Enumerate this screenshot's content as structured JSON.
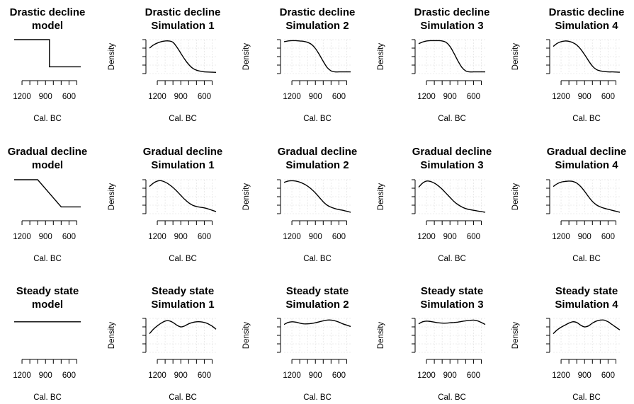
{
  "figure": {
    "x_axis_label": "Cal. BC",
    "y_axis_label": "Density",
    "x_tick_labels": [
      "1200",
      "900",
      "600"
    ],
    "line_color": "#000000",
    "grid_color": "#e6e6e6"
  },
  "chart_data": [
    {
      "type": "line",
      "title_lines": [
        "Drastic decline",
        "model"
      ],
      "kind": "model",
      "x": [
        1300,
        850,
        850,
        450
      ],
      "y": [
        1.0,
        1.0,
        0.2,
        0.2
      ],
      "xlabel": "Cal. BC",
      "ylabel": "",
      "xlim": [
        1300,
        450
      ],
      "ylim": [
        0,
        1
      ],
      "grid": false
    },
    {
      "type": "line",
      "title_lines": [
        "Drastic decline",
        "Simulation 1"
      ],
      "kind": "sim",
      "x": [
        1300,
        1250,
        1200,
        1150,
        1100,
        1050,
        1000,
        950,
        900,
        850,
        800,
        750,
        700,
        650,
        600,
        550,
        500,
        450
      ],
      "y": [
        0.75,
        0.84,
        0.9,
        0.94,
        0.96,
        0.96,
        0.92,
        0.78,
        0.6,
        0.42,
        0.27,
        0.16,
        0.1,
        0.07,
        0.05,
        0.045,
        0.04,
        0.035
      ],
      "xlabel": "Cal. BC",
      "ylabel": "Density",
      "xlim": [
        1300,
        450
      ],
      "ylim": [
        0,
        1
      ],
      "grid": true
    },
    {
      "type": "line",
      "title_lines": [
        "Drastic decline",
        "Simulation 2"
      ],
      "kind": "sim",
      "x": [
        1300,
        1250,
        1200,
        1150,
        1100,
        1050,
        1000,
        950,
        900,
        850,
        800,
        750,
        700,
        650,
        600,
        550,
        500,
        450
      ],
      "y": [
        0.94,
        0.96,
        0.97,
        0.97,
        0.96,
        0.95,
        0.92,
        0.86,
        0.74,
        0.56,
        0.36,
        0.18,
        0.08,
        0.05,
        0.05,
        0.05,
        0.05,
        0.05
      ],
      "xlabel": "Cal. BC",
      "ylabel": "Density",
      "xlim": [
        1300,
        450
      ],
      "ylim": [
        0,
        1
      ],
      "grid": true
    },
    {
      "type": "line",
      "title_lines": [
        "Drastic decline",
        "Simulation 3"
      ],
      "kind": "sim",
      "x": [
        1300,
        1250,
        1200,
        1150,
        1100,
        1050,
        1000,
        950,
        900,
        850,
        800,
        750,
        700,
        650,
        600,
        550,
        500,
        450
      ],
      "y": [
        0.88,
        0.93,
        0.96,
        0.97,
        0.97,
        0.97,
        0.96,
        0.92,
        0.8,
        0.6,
        0.38,
        0.19,
        0.08,
        0.05,
        0.05,
        0.05,
        0.05,
        0.05
      ],
      "xlabel": "Cal. BC",
      "ylabel": "Density",
      "xlim": [
        1300,
        450
      ],
      "ylim": [
        0,
        1
      ],
      "grid": true
    },
    {
      "type": "line",
      "title_lines": [
        "Drastic decline",
        "Simulation 4"
      ],
      "kind": "sim",
      "x": [
        1300,
        1250,
        1200,
        1150,
        1100,
        1050,
        1000,
        950,
        900,
        850,
        800,
        750,
        700,
        650,
        600,
        550,
        500,
        450
      ],
      "y": [
        0.8,
        0.89,
        0.94,
        0.96,
        0.95,
        0.91,
        0.84,
        0.72,
        0.56,
        0.38,
        0.22,
        0.12,
        0.08,
        0.06,
        0.05,
        0.05,
        0.045,
        0.04
      ],
      "xlabel": "Cal. BC",
      "ylabel": "Density",
      "xlim": [
        1300,
        450
      ],
      "ylim": [
        0,
        1
      ],
      "grid": true
    },
    {
      "type": "line",
      "title_lines": [
        "Gradual decline",
        "model"
      ],
      "kind": "model",
      "x": [
        1300,
        1000,
        700,
        450
      ],
      "y": [
        1.0,
        1.0,
        0.2,
        0.2
      ],
      "xlabel": "Cal. BC",
      "ylabel": "",
      "xlim": [
        1300,
        450
      ],
      "ylim": [
        0,
        1
      ],
      "grid": false
    },
    {
      "type": "line",
      "title_lines": [
        "Gradual decline",
        "Simulation 1"
      ],
      "kind": "sim",
      "x": [
        1300,
        1250,
        1200,
        1150,
        1100,
        1050,
        1000,
        950,
        900,
        850,
        800,
        750,
        700,
        650,
        600,
        550,
        500,
        450
      ],
      "y": [
        0.8,
        0.9,
        0.96,
        0.97,
        0.93,
        0.86,
        0.77,
        0.66,
        0.54,
        0.42,
        0.32,
        0.25,
        0.21,
        0.19,
        0.17,
        0.14,
        0.1,
        0.06
      ],
      "xlabel": "Cal. BC",
      "ylabel": "Density",
      "xlim": [
        1300,
        450
      ],
      "ylim": [
        0,
        1
      ],
      "grid": true
    },
    {
      "type": "line",
      "title_lines": [
        "Gradual decline",
        "Simulation 2"
      ],
      "kind": "sim",
      "x": [
        1300,
        1250,
        1200,
        1150,
        1100,
        1050,
        1000,
        950,
        900,
        850,
        800,
        750,
        700,
        650,
        600,
        550,
        500,
        450
      ],
      "y": [
        0.92,
        0.96,
        0.97,
        0.96,
        0.93,
        0.88,
        0.81,
        0.72,
        0.61,
        0.48,
        0.35,
        0.25,
        0.19,
        0.15,
        0.12,
        0.1,
        0.07,
        0.04
      ],
      "xlabel": "Cal. BC",
      "ylabel": "Density",
      "xlim": [
        1300,
        450
      ],
      "ylim": [
        0,
        1
      ],
      "grid": true
    },
    {
      "type": "line",
      "title_lines": [
        "Gradual decline",
        "Simulation 3"
      ],
      "kind": "sim",
      "x": [
        1300,
        1250,
        1200,
        1150,
        1100,
        1050,
        1000,
        950,
        900,
        850,
        800,
        750,
        700,
        650,
        600,
        550,
        500,
        450
      ],
      "y": [
        0.78,
        0.9,
        0.96,
        0.95,
        0.9,
        0.82,
        0.72,
        0.6,
        0.48,
        0.36,
        0.27,
        0.2,
        0.15,
        0.12,
        0.1,
        0.08,
        0.06,
        0.04
      ],
      "xlabel": "Cal. BC",
      "ylabel": "Density",
      "xlim": [
        1300,
        450
      ],
      "ylim": [
        0,
        1
      ],
      "grid": true
    },
    {
      "type": "line",
      "title_lines": [
        "Gradual decline",
        "Simulation 4"
      ],
      "kind": "sim",
      "x": [
        1300,
        1250,
        1200,
        1150,
        1100,
        1050,
        1000,
        950,
        900,
        850,
        800,
        750,
        700,
        650,
        600,
        550,
        500,
        450
      ],
      "y": [
        0.8,
        0.88,
        0.93,
        0.95,
        0.96,
        0.95,
        0.9,
        0.8,
        0.66,
        0.5,
        0.36,
        0.26,
        0.2,
        0.16,
        0.13,
        0.1,
        0.07,
        0.04
      ],
      "xlabel": "Cal. BC",
      "ylabel": "Density",
      "xlim": [
        1300,
        450
      ],
      "ylim": [
        0,
        1
      ],
      "grid": true
    },
    {
      "type": "line",
      "title_lines": [
        "Steady state",
        "model"
      ],
      "kind": "model",
      "x": [
        1300,
        450
      ],
      "y": [
        0.9,
        0.9
      ],
      "xlabel": "Cal. BC",
      "ylabel": "",
      "xlim": [
        1300,
        450
      ],
      "ylim": [
        0,
        1
      ],
      "grid": false
    },
    {
      "type": "line",
      "title_lines": [
        "Steady state",
        "Simulation 1"
      ],
      "kind": "sim",
      "x": [
        1300,
        1250,
        1200,
        1150,
        1100,
        1050,
        1000,
        950,
        900,
        850,
        800,
        750,
        700,
        650,
        600,
        550,
        500,
        450
      ],
      "y": [
        0.55,
        0.68,
        0.78,
        0.86,
        0.92,
        0.93,
        0.88,
        0.8,
        0.75,
        0.78,
        0.84,
        0.88,
        0.9,
        0.9,
        0.88,
        0.84,
        0.77,
        0.68
      ],
      "xlabel": "Cal. BC",
      "ylabel": "Density",
      "xlim": [
        1300,
        450
      ],
      "ylim": [
        0,
        1
      ],
      "grid": true
    },
    {
      "type": "line",
      "title_lines": [
        "Steady state",
        "Simulation 2"
      ],
      "kind": "sim",
      "x": [
        1300,
        1250,
        1200,
        1150,
        1100,
        1050,
        1000,
        950,
        900,
        850,
        800,
        750,
        700,
        650,
        600,
        550,
        500,
        450
      ],
      "y": [
        0.82,
        0.88,
        0.9,
        0.89,
        0.86,
        0.84,
        0.84,
        0.85,
        0.87,
        0.9,
        0.93,
        0.95,
        0.95,
        0.93,
        0.89,
        0.84,
        0.8,
        0.76
      ],
      "xlabel": "Cal. BC",
      "ylabel": "Density",
      "xlim": [
        1300,
        450
      ],
      "ylim": [
        0,
        1
      ],
      "grid": true
    },
    {
      "type": "line",
      "title_lines": [
        "Steady state",
        "Simulation 3"
      ],
      "kind": "sim",
      "x": [
        1300,
        1250,
        1200,
        1150,
        1100,
        1050,
        1000,
        950,
        900,
        850,
        800,
        750,
        700,
        650,
        600,
        550,
        500,
        450
      ],
      "y": [
        0.84,
        0.9,
        0.92,
        0.91,
        0.89,
        0.87,
        0.86,
        0.86,
        0.87,
        0.88,
        0.89,
        0.91,
        0.93,
        0.94,
        0.95,
        0.93,
        0.88,
        0.82
      ],
      "xlabel": "Cal. BC",
      "ylabel": "Density",
      "xlim": [
        1300,
        450
      ],
      "ylim": [
        0,
        1
      ],
      "grid": true
    },
    {
      "type": "line",
      "title_lines": [
        "Steady state",
        "Simulation 4"
      ],
      "kind": "sim",
      "x": [
        1300,
        1250,
        1200,
        1150,
        1100,
        1050,
        1000,
        950,
        900,
        850,
        800,
        750,
        700,
        650,
        600,
        550,
        500,
        450
      ],
      "y": [
        0.55,
        0.66,
        0.74,
        0.8,
        0.86,
        0.9,
        0.88,
        0.8,
        0.75,
        0.78,
        0.86,
        0.92,
        0.95,
        0.95,
        0.9,
        0.82,
        0.74,
        0.66
      ],
      "xlabel": "Cal. BC",
      "ylabel": "Density",
      "xlim": [
        1300,
        450
      ],
      "ylim": [
        0,
        1
      ],
      "grid": true
    }
  ]
}
